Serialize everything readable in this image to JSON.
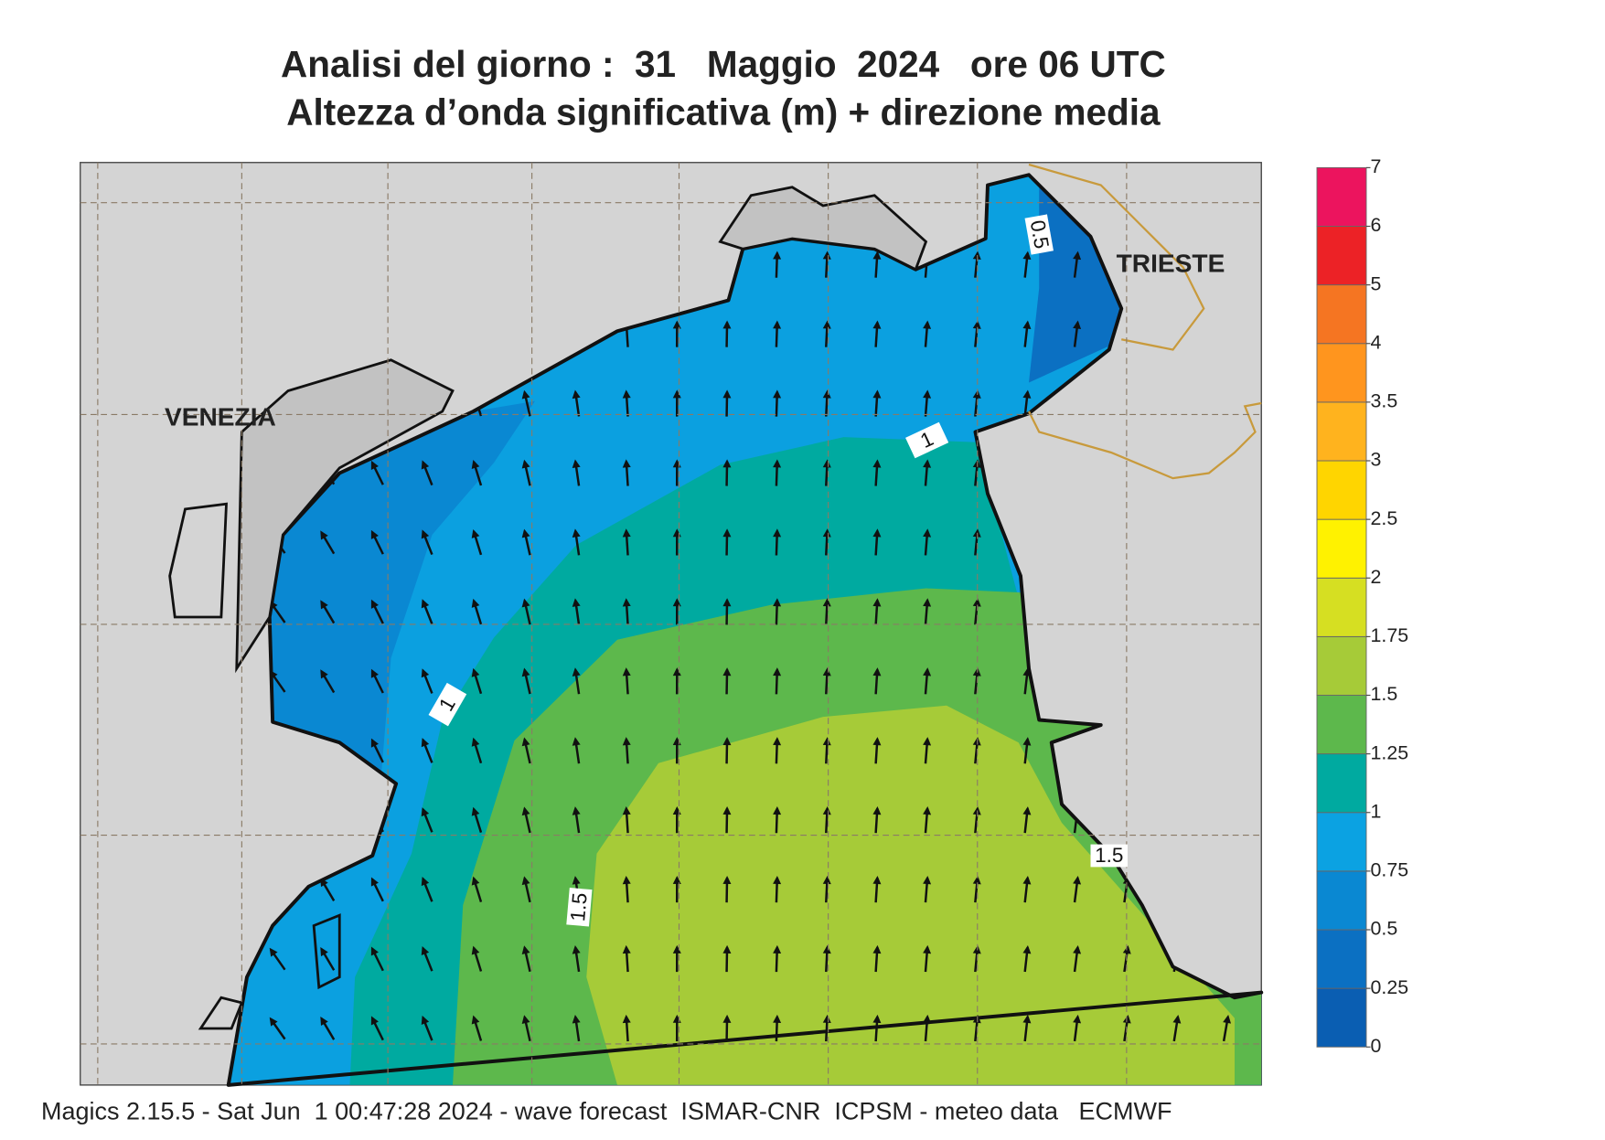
{
  "title": {
    "line1": "Analisi del giorno :  31   Maggio  2024   ore 06 UTC",
    "line2": "Altezza d’onda significativa (m) + direzione media"
  },
  "map": {
    "places": [
      "VENEZIA",
      "TRIESTE"
    ],
    "contour_labels": [
      "0.5",
      "1",
      "1",
      "1.5",
      "1.5"
    ]
  },
  "legend": {
    "ticks": [
      0,
      0.25,
      0.5,
      0.75,
      1,
      1.25,
      1.5,
      1.75,
      2,
      2.5,
      3,
      3.5,
      4,
      5,
      6,
      7
    ],
    "colors": [
      "#0a5eb2",
      "#0b70c2",
      "#0a88d2",
      "#0ba2e2",
      "#00aaa0",
      "#5db84c",
      "#a6cb38",
      "#d6df22",
      "#fff200",
      "#ffd500",
      "#ffb31e",
      "#ff951e",
      "#f57522",
      "#ec2226",
      "#ec145e"
    ]
  },
  "footer": "Magics 2.15.5 - Sat Jun  1 00:47:28 2024 - wave forecast  ISMAR-CNR  ICPSM - meteo data   ECMWF"
}
